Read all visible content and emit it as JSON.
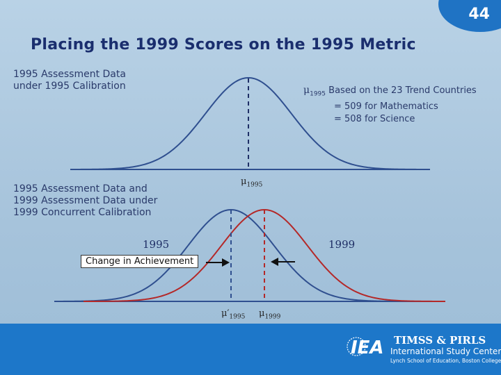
{
  "slide_number": "44",
  "title": "Placing the 1999 Scores on the 1995 Metric",
  "top_label": "1995 Assessment Data\nunder 1995 Calibration",
  "mid_label": "1995 Assessment Data and\n1999 Assessment Data under\n1999 Concurrent Calibration",
  "annotation": {
    "symbol": "μ",
    "subscript": "1995",
    "line1": "Based on the 23 Trend Countries",
    "line2": "= 509 for Mathematics",
    "line3": "= 508 for Science"
  },
  "mu_labels": {
    "top_symbol": "μ",
    "top_sub": "1995",
    "bottom_left_symbol": "μ′",
    "bottom_left_sub": "1995",
    "bottom_right_symbol": "μ",
    "bottom_right_sub": "1999"
  },
  "year_1995": "1995",
  "year_1999": "1999",
  "change_label": "Change in Achievement",
  "footer": {
    "line1": "TIMSS & PIRLS",
    "line2": "International Study Center",
    "line3": "Lynch School of Education, Boston College",
    "logo_text": "IEA"
  },
  "colors": {
    "blue_curve": "#2f4f8f",
    "red_curve": "#b42828",
    "footer": "#1d77c9"
  }
}
